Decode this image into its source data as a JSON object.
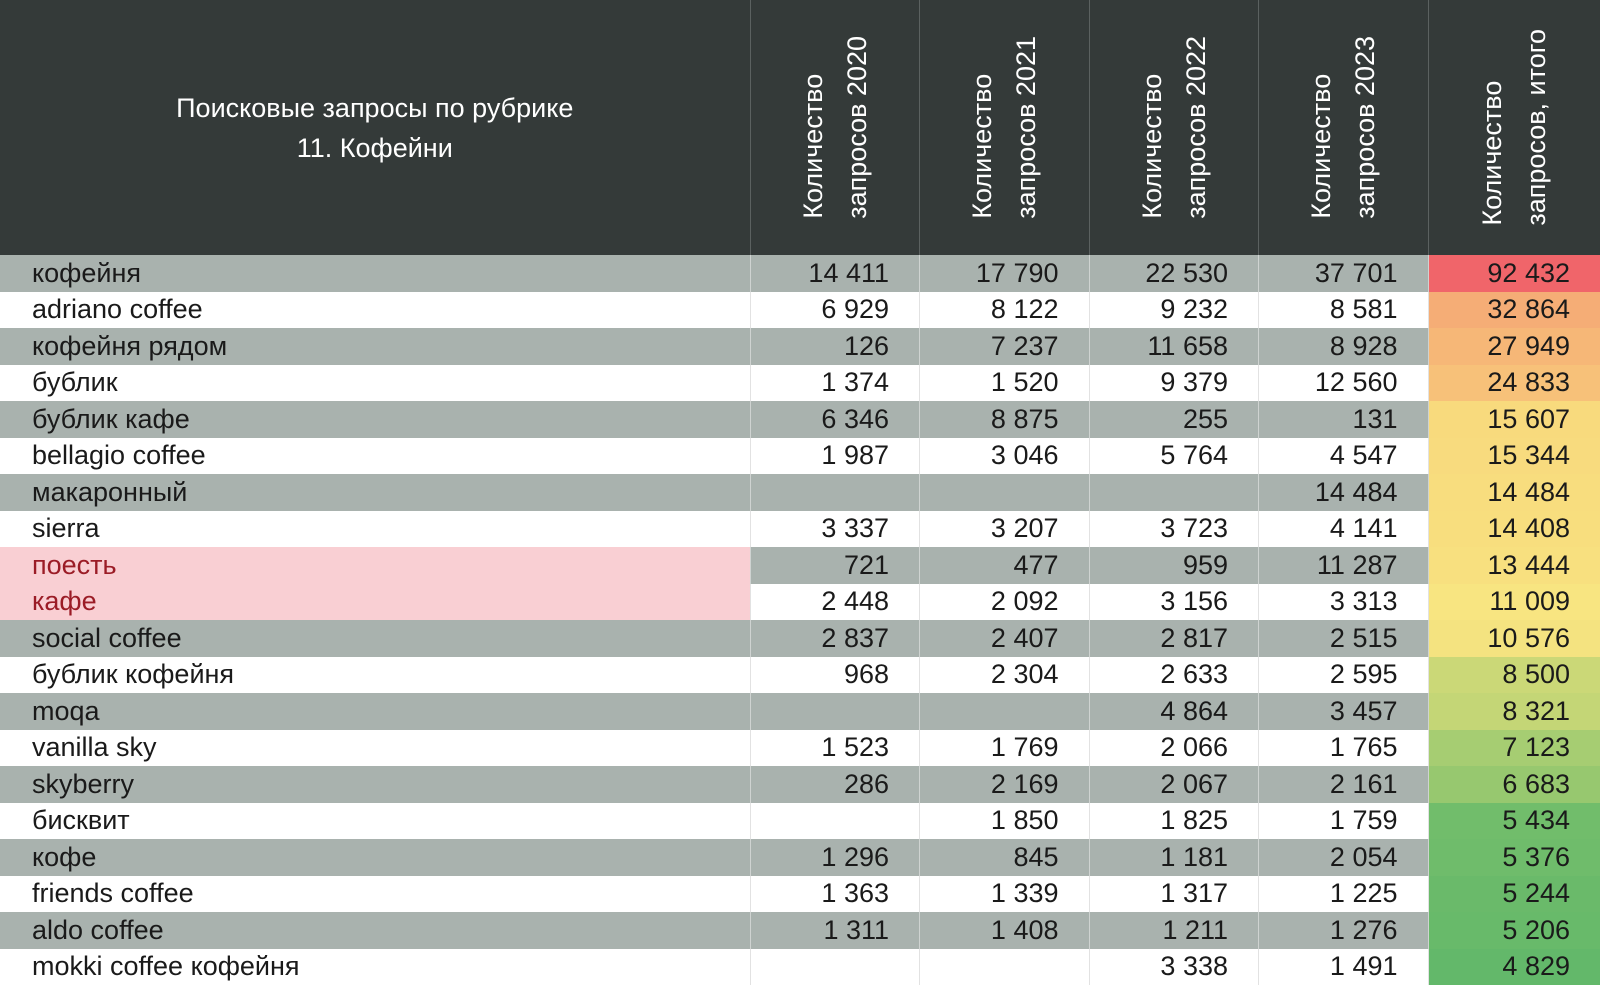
{
  "chart_data": {
    "type": "table",
    "title_line1": "Поисковые запросы по рубрике",
    "title_line2": "11. Кофейни",
    "columns": [
      {
        "line1": "Количество",
        "line2": "запросов 2020"
      },
      {
        "line1": "Количество",
        "line2": "запросов 2021"
      },
      {
        "line1": "Количество",
        "line2": "запросов 2022"
      },
      {
        "line1": "Количество",
        "line2": "запросов 2023"
      },
      {
        "line1": "Количество",
        "line2": "запросов, итого"
      }
    ],
    "highlight_query_color": "#f9cfd3",
    "highlight_query_text_color": "#9b1c26",
    "total_color_scale": [
      "#f0656a",
      "#f6b978",
      "#f8e37f",
      "#c7d977",
      "#63b96a"
    ],
    "rows": [
      {
        "query": "кофейня",
        "v2020": "14 411",
        "v2021": "17 790",
        "v2022": "22 530",
        "v2023": "37 701",
        "total": "92 432",
        "total_color": "#f0656a",
        "highlight": false
      },
      {
        "query": "adriano coffee",
        "v2020": "6 929",
        "v2021": "8 122",
        "v2022": "9 232",
        "v2023": "8 581",
        "total": "32 864",
        "total_color": "#f5ad76",
        "highlight": false
      },
      {
        "query": "кофейня рядом",
        "v2020": "126",
        "v2021": "7 237",
        "v2022": "11 658",
        "v2023": "8 928",
        "total": "27 949",
        "total_color": "#f6b777",
        "highlight": false
      },
      {
        "query": "бублик",
        "v2020": "1 374",
        "v2021": "1 520",
        "v2022": "9 379",
        "v2023": "12 560",
        "total": "24 833",
        "total_color": "#f7c179",
        "highlight": false
      },
      {
        "query": "бублик кафе",
        "v2020": "6 346",
        "v2021": "8 875",
        "v2022": "255",
        "v2023": "131",
        "total": "15 607",
        "total_color": "#f8da7d",
        "highlight": false
      },
      {
        "query": "bellagio coffee",
        "v2020": "1 987",
        "v2021": "3 046",
        "v2022": "5 764",
        "v2023": "4 547",
        "total": "15 344",
        "total_color": "#f8db7e",
        "highlight": false
      },
      {
        "query": "макаронный",
        "v2020": "",
        "v2021": "",
        "v2022": "",
        "v2023": "14 484",
        "total": "14 484",
        "total_color": "#f8dd7e",
        "highlight": false
      },
      {
        "query": "sierra",
        "v2020": "3 337",
        "v2021": "3 207",
        "v2022": "3 723",
        "v2023": "4 141",
        "total": "14 408",
        "total_color": "#f8de7e",
        "highlight": false
      },
      {
        "query": "поесть",
        "v2020": "721",
        "v2021": "477",
        "v2022": "959",
        "v2023": "11 287",
        "total": "13 444",
        "total_color": "#f8e07f",
        "highlight": true
      },
      {
        "query": "кафе",
        "v2020": "2 448",
        "v2021": "2 092",
        "v2022": "3 156",
        "v2023": "3 313",
        "total": "11 009",
        "total_color": "#f8e581",
        "highlight": true
      },
      {
        "query": "social coffee",
        "v2020": "2 837",
        "v2021": "2 407",
        "v2022": "2 817",
        "v2023": "2 515",
        "total": "10 576",
        "total_color": "#f4e380",
        "highlight": false
      },
      {
        "query": "бублик кофейня",
        "v2020": "968",
        "v2021": "2 304",
        "v2022": "2 633",
        "v2023": "2 595",
        "total": "8 500",
        "total_color": "#cbd877",
        "highlight": false
      },
      {
        "query": "moqa",
        "v2020": "",
        "v2021": "",
        "v2022": "4 864",
        "v2023": "3 457",
        "total": "8 321",
        "total_color": "#c4d676",
        "highlight": false
      },
      {
        "query": "vanilla sky",
        "v2020": "1 523",
        "v2021": "1 769",
        "v2022": "2 066",
        "v2023": "1 765",
        "total": "7 123",
        "total_color": "#a6cd72",
        "highlight": false
      },
      {
        "query": "skyberry",
        "v2020": "286",
        "v2021": "2 169",
        "v2022": "2 067",
        "v2023": "2 161",
        "total": "6 683",
        "total_color": "#97c86f",
        "highlight": false
      },
      {
        "query": "бисквит",
        "v2020": "",
        "v2021": "1 850",
        "v2022": "1 825",
        "v2023": "1 759",
        "total": "5 434",
        "total_color": "#71bd6b",
        "highlight": false
      },
      {
        "query": "кофе",
        "v2020": "1 296",
        "v2021": "845",
        "v2022": "1 181",
        "v2023": "2 054",
        "total": "5 376",
        "total_color": "#6fbc6b",
        "highlight": false
      },
      {
        "query": "friends coffee",
        "v2020": "1 363",
        "v2021": "1 339",
        "v2022": "1 317",
        "v2023": "1 225",
        "total": "5 244",
        "total_color": "#6aba6a",
        "highlight": false
      },
      {
        "query": "aldo coffee",
        "v2020": "1 311",
        "v2021": "1 408",
        "v2022": "1 211",
        "v2023": "1 276",
        "total": "5 206",
        "total_color": "#68ba6a",
        "highlight": false
      },
      {
        "query": "mokki coffee кофейня",
        "v2020": "",
        "v2021": "",
        "v2022": "3 338",
        "v2023": "1 491",
        "total": "4 829",
        "total_color": "#63b86a",
        "highlight": false
      }
    ]
  }
}
